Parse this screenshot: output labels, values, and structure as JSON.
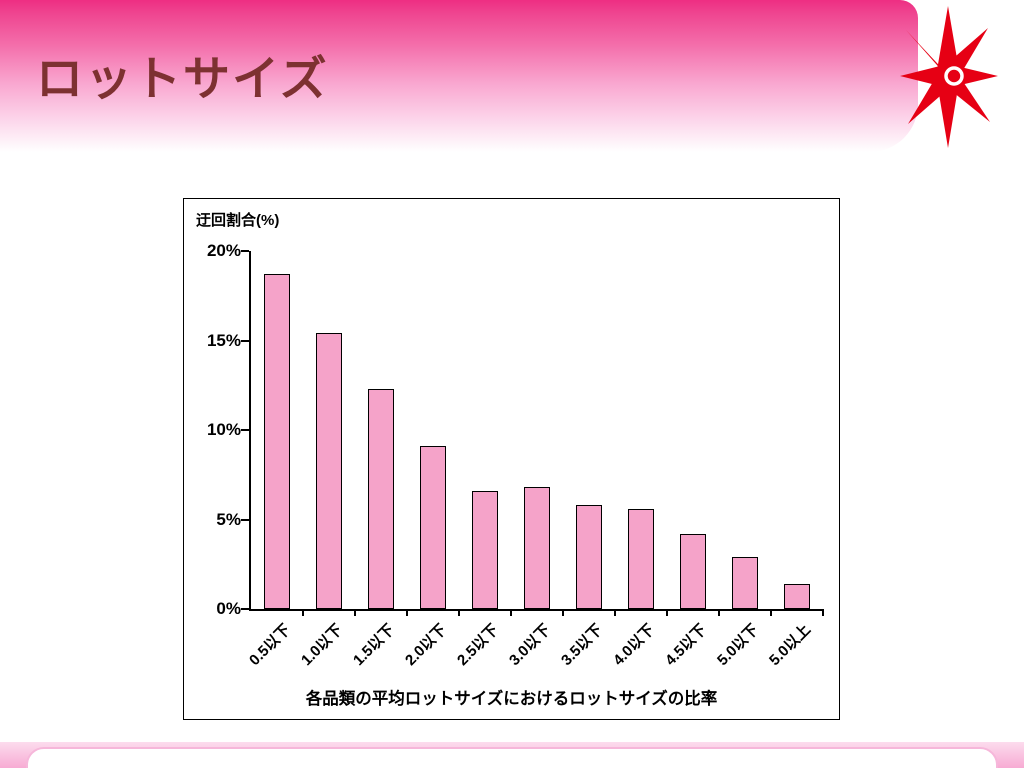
{
  "slide": {
    "title": "ロットサイズ"
  },
  "chart_data": {
    "type": "bar",
    "title": "",
    "ylabel": "迂回割合(%)",
    "xlabel": "各品類の平均ロットサイズにおけるロットサイズの比率",
    "categories": [
      "0.5以下",
      "1.0以下",
      "1.5以下",
      "2.0以下",
      "2.5以下",
      "3.0以下",
      "3.5以下",
      "4.0以下",
      "4.5以下",
      "5.0以下",
      "5.0以上"
    ],
    "values": [
      18.7,
      15.4,
      12.3,
      9.1,
      6.6,
      6.8,
      5.8,
      5.6,
      4.2,
      2.9,
      1.4
    ],
    "ylim": [
      0,
      20
    ],
    "ytick_labels": [
      "0%",
      "5%",
      "10%",
      "15%",
      "20%"
    ],
    "grid": false,
    "legend": false,
    "bar_color": "#f5a3c9",
    "bar_border": "#000000"
  },
  "colors": {
    "header_pink": "#ee2e82",
    "title_text": "#7d3131",
    "star_red": "#e60014",
    "footer_pink": "#f7abd4",
    "frame_border": "#000000"
  }
}
